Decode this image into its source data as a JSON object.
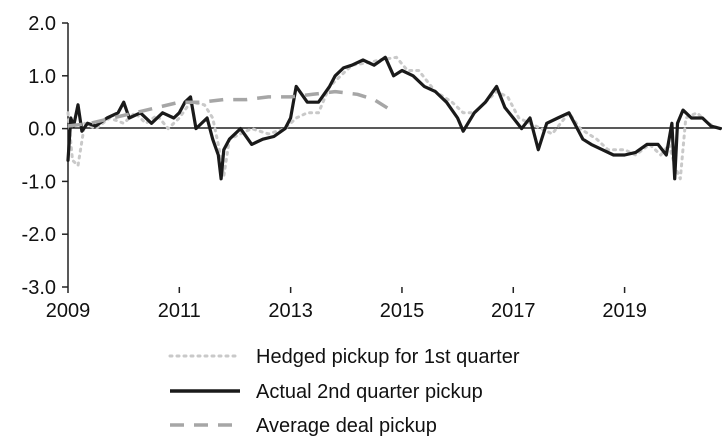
{
  "chart_data": {
    "type": "line",
    "title": "",
    "xlabel": "",
    "ylabel": "",
    "x_ticks": [
      "2009",
      "2011",
      "2013",
      "2015",
      "2017",
      "2019"
    ],
    "y_ticks": [
      "2.0",
      "1.0",
      "0.0",
      "-1.0",
      "-2.0",
      "-3.0"
    ],
    "xlim": [
      2009,
      2020.75
    ],
    "ylim": [
      -3.0,
      2.0
    ],
    "legend_position": "bottom-center",
    "series": [
      {
        "name": "Hedged pickup for 1st quarter",
        "style": "dotted",
        "color": "#c9c9c9",
        "points": [
          [
            2009.0,
            0.3
          ],
          [
            2009.08,
            -0.6
          ],
          [
            2009.18,
            -0.7
          ],
          [
            2009.3,
            0.1
          ],
          [
            2009.5,
            0.0
          ],
          [
            2009.75,
            0.2
          ],
          [
            2010.0,
            0.1
          ],
          [
            2010.2,
            0.3
          ],
          [
            2010.4,
            0.1
          ],
          [
            2010.6,
            0.25
          ],
          [
            2010.8,
            0.0
          ],
          [
            2011.0,
            0.2
          ],
          [
            2011.2,
            0.5
          ],
          [
            2011.45,
            0.45
          ],
          [
            2011.6,
            0.2
          ],
          [
            2011.72,
            -0.4
          ],
          [
            2011.8,
            -0.9
          ],
          [
            2011.9,
            -0.2
          ],
          [
            2012.1,
            -0.1
          ],
          [
            2012.3,
            0.0
          ],
          [
            2012.6,
            -0.1
          ],
          [
            2012.9,
            0.0
          ],
          [
            2013.1,
            0.2
          ],
          [
            2013.3,
            0.3
          ],
          [
            2013.5,
            0.3
          ],
          [
            2013.7,
            0.8
          ],
          [
            2013.9,
            1.0
          ],
          [
            2014.1,
            1.2
          ],
          [
            2014.4,
            1.25
          ],
          [
            2014.6,
            1.3
          ],
          [
            2014.9,
            1.35
          ],
          [
            2015.1,
            1.1
          ],
          [
            2015.3,
            1.1
          ],
          [
            2015.6,
            0.7
          ],
          [
            2015.9,
            0.5
          ],
          [
            2016.1,
            0.3
          ],
          [
            2016.3,
            0.3
          ],
          [
            2016.5,
            0.5
          ],
          [
            2016.7,
            0.7
          ],
          [
            2016.9,
            0.6
          ],
          [
            2017.1,
            0.2
          ],
          [
            2017.3,
            0.1
          ],
          [
            2017.5,
            0.0
          ],
          [
            2017.7,
            -0.1
          ],
          [
            2018.0,
            0.3
          ],
          [
            2018.2,
            0.0
          ],
          [
            2018.5,
            -0.2
          ],
          [
            2018.7,
            -0.4
          ],
          [
            2019.0,
            -0.4
          ],
          [
            2019.2,
            -0.5
          ],
          [
            2019.45,
            -0.3
          ],
          [
            2019.65,
            -0.5
          ],
          [
            2019.8,
            -0.3
          ],
          [
            2019.9,
            -0.7
          ],
          [
            2020.0,
            -0.95
          ],
          [
            2020.1,
            0.2
          ],
          [
            2020.3,
            0.3
          ],
          [
            2020.5,
            0.1
          ],
          [
            2020.7,
            0.0
          ]
        ]
      },
      {
        "name": "Actual 2nd quarter pickup",
        "style": "solid",
        "color": "#1a1a1a",
        "points": [
          [
            2009.0,
            -0.6
          ],
          [
            2009.05,
            0.2
          ],
          [
            2009.1,
            0.05
          ],
          [
            2009.18,
            0.45
          ],
          [
            2009.25,
            -0.05
          ],
          [
            2009.35,
            0.1
          ],
          [
            2009.5,
            0.05
          ],
          [
            2009.7,
            0.2
          ],
          [
            2009.9,
            0.3
          ],
          [
            2010.0,
            0.5
          ],
          [
            2010.1,
            0.2
          ],
          [
            2010.3,
            0.3
          ],
          [
            2010.5,
            0.1
          ],
          [
            2010.7,
            0.3
          ],
          [
            2010.9,
            0.2
          ],
          [
            2011.0,
            0.3
          ],
          [
            2011.1,
            0.5
          ],
          [
            2011.2,
            0.6
          ],
          [
            2011.3,
            0.0
          ],
          [
            2011.5,
            0.2
          ],
          [
            2011.6,
            -0.2
          ],
          [
            2011.7,
            -0.5
          ],
          [
            2011.75,
            -0.95
          ],
          [
            2011.8,
            -0.4
          ],
          [
            2011.9,
            -0.2
          ],
          [
            2012.1,
            0.0
          ],
          [
            2012.3,
            -0.3
          ],
          [
            2012.5,
            -0.2
          ],
          [
            2012.7,
            -0.15
          ],
          [
            2012.9,
            0.0
          ],
          [
            2013.0,
            0.2
          ],
          [
            2013.1,
            0.8
          ],
          [
            2013.3,
            0.5
          ],
          [
            2013.5,
            0.5
          ],
          [
            2013.7,
            0.8
          ],
          [
            2013.8,
            1.0
          ],
          [
            2013.95,
            1.15
          ],
          [
            2014.1,
            1.2
          ],
          [
            2014.3,
            1.3
          ],
          [
            2014.5,
            1.2
          ],
          [
            2014.7,
            1.35
          ],
          [
            2014.85,
            1.0
          ],
          [
            2015.0,
            1.1
          ],
          [
            2015.2,
            1.0
          ],
          [
            2015.4,
            0.8
          ],
          [
            2015.6,
            0.7
          ],
          [
            2015.8,
            0.5
          ],
          [
            2016.0,
            0.2
          ],
          [
            2016.1,
            -0.05
          ],
          [
            2016.3,
            0.3
          ],
          [
            2016.5,
            0.5
          ],
          [
            2016.7,
            0.8
          ],
          [
            2016.85,
            0.4
          ],
          [
            2017.0,
            0.2
          ],
          [
            2017.15,
            0.0
          ],
          [
            2017.3,
            0.2
          ],
          [
            2017.45,
            -0.4
          ],
          [
            2017.6,
            0.1
          ],
          [
            2017.8,
            0.2
          ],
          [
            2018.0,
            0.3
          ],
          [
            2018.1,
            0.1
          ],
          [
            2018.25,
            -0.2
          ],
          [
            2018.4,
            -0.3
          ],
          [
            2018.6,
            -0.4
          ],
          [
            2018.8,
            -0.5
          ],
          [
            2019.0,
            -0.5
          ],
          [
            2019.2,
            -0.45
          ],
          [
            2019.4,
            -0.3
          ],
          [
            2019.6,
            -0.3
          ],
          [
            2019.75,
            -0.5
          ],
          [
            2019.85,
            0.1
          ],
          [
            2019.9,
            -0.95
          ],
          [
            2019.95,
            0.1
          ],
          [
            2020.05,
            0.35
          ],
          [
            2020.2,
            0.2
          ],
          [
            2020.4,
            0.2
          ],
          [
            2020.55,
            0.05
          ],
          [
            2020.72,
            0.0
          ]
        ]
      },
      {
        "name": "Average deal pickup",
        "style": "dashed",
        "color": "#a6a6a6",
        "points": [
          [
            2009.0,
            0.05
          ],
          [
            2009.4,
            0.1
          ],
          [
            2009.8,
            0.2
          ],
          [
            2010.2,
            0.3
          ],
          [
            2010.6,
            0.4
          ],
          [
            2011.0,
            0.5
          ],
          [
            2011.4,
            0.5
          ],
          [
            2011.8,
            0.55
          ],
          [
            2012.2,
            0.55
          ],
          [
            2012.6,
            0.6
          ],
          [
            2013.0,
            0.6
          ],
          [
            2013.4,
            0.65
          ],
          [
            2013.8,
            0.7
          ],
          [
            2014.2,
            0.65
          ],
          [
            2014.5,
            0.55
          ],
          [
            2014.8,
            0.35
          ]
        ]
      }
    ]
  }
}
